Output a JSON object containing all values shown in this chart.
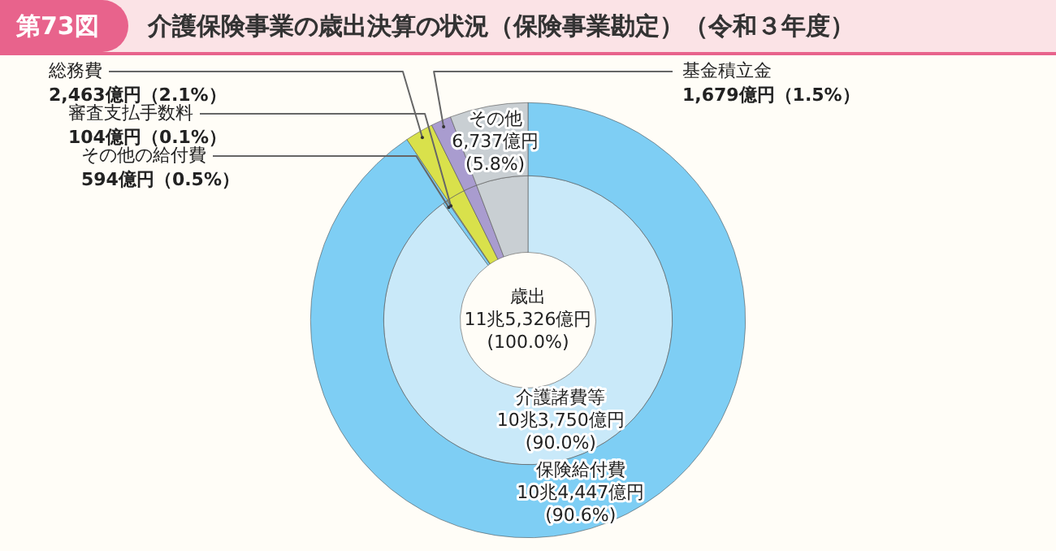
{
  "chart_data": [
    {
      "type": "donut",
      "title": "介護保険事業の歳出決算の状況（保険事業勘定）（令和３年度）",
      "annotations": [
        "第73図",
        "歳出\n11兆5,326億円\n(100.0%)"
      ],
      "categories": [
        "保険給付費",
        "総務費",
        "基金積立金",
        "その他"
      ],
      "values": [
        90.6,
        2.1,
        1.5,
        5.8
      ],
      "colors": [
        "#7ecef4",
        "#d9e14b",
        "#a99ccf",
        "#c9cfd3"
      ],
      "value_labels": [
        "10兆4,447億円\n(90.6%)",
        "2,463億円（2.1%）",
        "1,679億円（1.5%）",
        "6,737億円\n(5.8%)"
      ],
      "legend": false
    },
    {
      "type": "donut",
      "categories": [
        "介護諸費等",
        "その他の給付費",
        "審査支払手数料",
        null,
        null,
        null
      ],
      "values": [
        90.0,
        0.5,
        0.1,
        2.1,
        1.5,
        5.8
      ],
      "colors": [
        "#c9e9f9",
        "#7ecef4",
        "#b4bcc2",
        "#d9e14b",
        "#a99ccf",
        "#c9cfd3"
      ],
      "value_labels": [
        "10兆3,750億円\n(90.0%)",
        "594億円（0.5%）",
        "104億円（0.1%）",
        null,
        null,
        null
      ],
      "legend": false
    }
  ]
}
